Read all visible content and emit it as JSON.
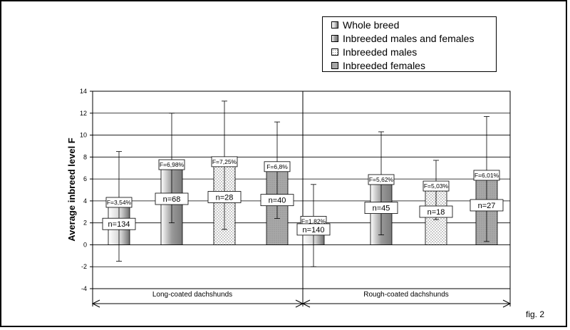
{
  "figure_label": "fig. 2",
  "chart_data": {
    "type": "bar",
    "title": "",
    "xlabel": "",
    "ylabel": "Average inbreed level F",
    "ylim": [
      -4,
      14
    ],
    "yticks": [
      -4,
      -2,
      0,
      2,
      4,
      6,
      8,
      10,
      12,
      14
    ],
    "grid": true,
    "legend_position": "top-right",
    "groups": [
      "Long-coated dachshunds",
      "Rough-coated dachshunds"
    ],
    "series": [
      {
        "name": "Whole breed",
        "values": [
          3.54,
          1.82
        ],
        "err_low": [
          -1.5,
          -2.0
        ],
        "err_high": [
          8.5,
          5.5
        ],
        "n_labels": [
          "n=134",
          "n=140"
        ],
        "f_labels": [
          "F=3,54%",
          "F=1,82%"
        ]
      },
      {
        "name": "Inbreeded males and females",
        "values": [
          6.98,
          5.62
        ],
        "err_low": [
          2.0,
          0.9
        ],
        "err_high": [
          12.0,
          10.3
        ],
        "n_labels": [
          "n=68",
          "n=45"
        ],
        "f_labels": [
          "F=6,98%",
          "F=5,62%"
        ]
      },
      {
        "name": "Inbreeded males",
        "values": [
          7.25,
          5.03
        ],
        "err_low": [
          1.4,
          2.3
        ],
        "err_high": [
          13.1,
          7.7
        ],
        "n_labels": [
          "n=28",
          "n=18"
        ],
        "f_labels": [
          "F=7,25%",
          "F=5,03%"
        ]
      },
      {
        "name": "Inbreeded females",
        "values": [
          6.8,
          6.01
        ],
        "err_low": [
          2.4,
          0.3
        ],
        "err_high": [
          11.2,
          11.7
        ],
        "n_labels": [
          "n=40",
          "n=27"
        ],
        "f_labels": [
          "F=6,8%",
          "F=6,01%"
        ]
      }
    ],
    "colors": {
      "whole_breed": "#d9d9d9",
      "males_females": "#7f7f7f",
      "males": "#ffffff",
      "females": "#a6a6a6"
    }
  }
}
